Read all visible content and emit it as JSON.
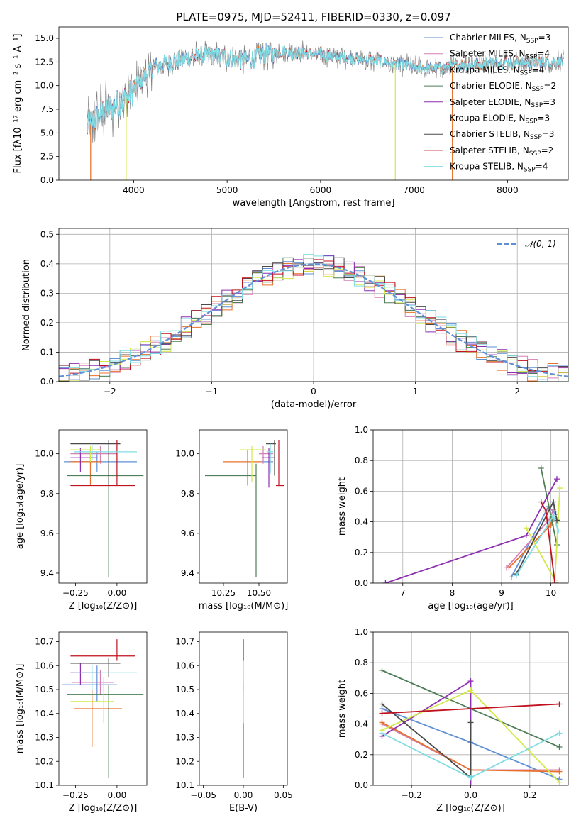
{
  "colors": {
    "Chabrier MILES": "#5f8fd6",
    "Salpeter MILES": "#d67fb5",
    "Kroupa MILES": "#e8702a",
    "Chabrier ELODIE": "#4e7d57",
    "Salpeter ELODIE": "#8e2eb0",
    "Kroupa ELODIE": "#d4e84a",
    "Chabrier STELIB": "#4a4a4a",
    "Salpeter STELIB": "#c0121e",
    "Kroupa STELIB": "#7fdde4"
  },
  "chart_data": [
    {
      "id": "spectrum",
      "type": "line",
      "title": "PLATE=0975, MJD=52411, FIBERID=0330, z=0.097",
      "xlabel": "wavelength [Angstrom, rest frame]",
      "ylabel": "Flux [fλ10⁻¹⁷ erg cm⁻² s⁻¹ A⁻¹]",
      "xlim": [
        3200,
        8650
      ],
      "ylim": [
        0,
        16.2
      ],
      "xticks": [
        4000,
        5000,
        6000,
        7000,
        8000
      ],
      "yticks": [
        0.0,
        2.5,
        5.0,
        7.5,
        10.0,
        12.5,
        15.0
      ],
      "grid": false,
      "legend_position": "top-right",
      "continuum": {
        "x": [
          3500,
          3600,
          3700,
          3800,
          3900,
          4000,
          4100,
          4200,
          4400,
          4600,
          4800,
          5000,
          5200,
          5400,
          5600,
          5800,
          6000,
          6200,
          6400,
          6600,
          6800,
          7000,
          7200,
          7400,
          7600,
          7800,
          8000,
          8200,
          8400,
          8600
        ],
        "y": [
          5.5,
          6.5,
          7.5,
          7.8,
          8.5,
          9.5,
          10.8,
          11.8,
          12.5,
          13.0,
          13.2,
          13.0,
          12.6,
          13.3,
          13.6,
          13.4,
          13.3,
          13.0,
          12.8,
          12.6,
          12.3,
          12.0,
          11.8,
          12.0,
          12.3,
          12.4,
          12.5,
          12.4,
          12.6,
          12.5
        ]
      },
      "series": [
        {
          "name": "Chabrier MILES, N_SSP=3",
          "legend": {
            "pre": "Chabrier MILES, N",
            "sub": "SSP",
            "post": "=3"
          }
        },
        {
          "name": "Salpeter MILES, N_SSP=4",
          "legend": {
            "pre": "Salpeter MILES, N",
            "sub": "SSP",
            "post": "=4"
          }
        },
        {
          "name": "Kroupa MILES, N_SSP=4",
          "legend": {
            "pre": "Kroupa MILES, N",
            "sub": "SSP",
            "post": "=4"
          }
        },
        {
          "name": "Chabrier ELODIE, N_SSP=2",
          "legend": {
            "pre": "Chabrier ELODIE, N",
            "sub": "SSP",
            "post": "=2"
          }
        },
        {
          "name": "Salpeter ELODIE, N_SSP=3",
          "legend": {
            "pre": "Salpeter ELODIE, N",
            "sub": "SSP",
            "post": "=3"
          }
        },
        {
          "name": "Kroupa ELODIE, N_SSP=3",
          "legend": {
            "pre": "Kroupa ELODIE, N",
            "sub": "SSP",
            "post": "=3"
          }
        },
        {
          "name": "Chabrier STELIB, N_SSP=3",
          "legend": {
            "pre": "Chabrier STELIB, N",
            "sub": "SSP",
            "post": "=3"
          }
        },
        {
          "name": "Salpeter STELIB, N_SSP=2",
          "legend": {
            "pre": "Salpeter STELIB, N",
            "sub": "SSP",
            "post": "=2"
          }
        },
        {
          "name": "Kroupa STELIB, N_SSP=4",
          "legend": {
            "pre": "Kroupa STELIB, N",
            "sub": "SSP",
            "post": "=4"
          }
        }
      ],
      "drop_lines": [
        {
          "x": 3540,
          "color": "Kroupa MILES"
        },
        {
          "x": 3920,
          "color": "Kroupa ELODIE"
        },
        {
          "x": 6800,
          "color": "Kroupa ELODIE"
        },
        {
          "x": 7410,
          "color": "Kroupa MILES"
        }
      ]
    },
    {
      "id": "residuals",
      "type": "step",
      "xlabel": "(data-model)/error",
      "ylabel": "Normed distribution",
      "xlim": [
        -2.5,
        2.5
      ],
      "ylim": [
        0,
        0.52
      ],
      "xticks": [
        -2,
        -1,
        0,
        1,
        2
      ],
      "yticks": [
        0.0,
        0.1,
        0.2,
        0.3,
        0.4,
        0.5
      ],
      "grid": true,
      "legend_position": "top-right",
      "gaussian_label": "𝒩(0, 1)",
      "bin_width": 0.1
    },
    {
      "id": "age-vs-Z",
      "type": "errorbar",
      "xlabel": "Z [log₁₀(Z/Z⊙)]",
      "ylabel": "age  [log₁₀(age/yr)]",
      "xlim": [
        -0.35,
        0.18
      ],
      "ylim": [
        9.35,
        10.12
      ],
      "xticks": [
        -0.25,
        0.0
      ],
      "yticks": [
        9.4,
        9.6,
        9.8,
        10.0
      ],
      "points": [
        {
          "c": "Chabrier MILES",
          "x": -0.12,
          "xlo": -0.32,
          "xhi": 0.12,
          "y": 9.96,
          "ylo": 9.91,
          "yhi": 10.01
        },
        {
          "c": "Salpeter MILES",
          "x": -0.1,
          "xlo": -0.28,
          "xhi": 0.0,
          "y": 10.0,
          "ylo": 9.95,
          "yhi": 10.04
        },
        {
          "c": "Kroupa MILES",
          "x": -0.16,
          "xlo": -0.28,
          "xhi": -0.09,
          "y": 9.96,
          "ylo": 9.84,
          "yhi": 10.02
        },
        {
          "c": "Chabrier ELODIE",
          "x": -0.05,
          "xlo": -0.3,
          "xhi": 0.16,
          "y": 9.89,
          "ylo": 9.38,
          "yhi": 9.95
        },
        {
          "c": "Salpeter ELODIE",
          "x": -0.22,
          "xlo": -0.28,
          "xhi": -0.12,
          "y": 9.98,
          "ylo": 9.91,
          "yhi": 10.03
        },
        {
          "c": "Kroupa ELODIE",
          "x": -0.16,
          "xlo": -0.28,
          "xhi": -0.1,
          "y": 10.02,
          "ylo": 9.96,
          "yhi": 10.04
        },
        {
          "c": "Chabrier STELIB",
          "x": -0.05,
          "xlo": -0.28,
          "xhi": 0.02,
          "y": 10.05,
          "ylo": 9.84,
          "yhi": 10.07
        },
        {
          "c": "Salpeter STELIB",
          "x": 0.0,
          "xlo": -0.28,
          "xhi": 0.11,
          "y": 9.84,
          "ylo": 9.84,
          "yhi": 10.07
        },
        {
          "c": "Kroupa STELIB",
          "x": -0.15,
          "xlo": -0.26,
          "xhi": 0.12,
          "y": 10.01,
          "ylo": 9.97,
          "yhi": 10.05
        }
      ]
    },
    {
      "id": "age-vs-mass",
      "type": "errorbar",
      "xlabel": "mass [log₁₀(M/M⊙)]",
      "ylabel": "",
      "xlim": [
        10.08,
        10.7
      ],
      "ylim": [
        9.35,
        10.12
      ],
      "xticks": [
        10.25,
        10.5
      ],
      "yticks": [
        9.4,
        9.6,
        9.8,
        10.0
      ],
      "points": [
        {
          "c": "Chabrier MILES",
          "x": 10.58,
          "xlo": 10.52,
          "xhi": 10.6,
          "y": 9.96,
          "ylo": 9.91,
          "yhi": 10.01
        },
        {
          "c": "Salpeter MILES",
          "x": 10.53,
          "xlo": 10.5,
          "xhi": 10.6,
          "y": 10.0,
          "ylo": 9.95,
          "yhi": 10.04
        },
        {
          "c": "Kroupa MILES",
          "x": 10.42,
          "xlo": 10.25,
          "xhi": 10.52,
          "y": 9.96,
          "ylo": 9.84,
          "yhi": 10.02
        },
        {
          "c": "Chabrier ELODIE",
          "x": 10.48,
          "xlo": 10.12,
          "xhi": 10.48,
          "y": 9.89,
          "ylo": 9.38,
          "yhi": 9.95
        },
        {
          "c": "Salpeter ELODIE",
          "x": 10.57,
          "xlo": 10.52,
          "xhi": 10.61,
          "y": 9.98,
          "ylo": 9.83,
          "yhi": 10.03
        },
        {
          "c": "Kroupa ELODIE",
          "x": 10.45,
          "xlo": 10.37,
          "xhi": 10.55,
          "y": 10.02,
          "ylo": 9.86,
          "yhi": 10.04
        },
        {
          "c": "Chabrier STELIB",
          "x": 10.61,
          "xlo": 10.55,
          "xhi": 10.62,
          "y": 10.05,
          "ylo": 9.89,
          "yhi": 10.07
        },
        {
          "c": "Salpeter STELIB",
          "x": 10.64,
          "xlo": 10.62,
          "xhi": 10.68,
          "y": 9.84,
          "ylo": 9.84,
          "yhi": 10.07
        },
        {
          "c": "Kroupa STELIB",
          "x": 10.58,
          "xlo": 10.56,
          "xhi": 10.6,
          "y": 10.01,
          "ylo": 9.9,
          "yhi": 10.05
        }
      ]
    },
    {
      "id": "weight-vs-age",
      "type": "line",
      "xlabel": "age  [log₁₀(age/yr)]",
      "ylabel": "mass weight",
      "xlim": [
        6.4,
        10.35
      ],
      "ylim": [
        0,
        1.0
      ],
      "xticks": [
        7,
        8,
        9,
        10
      ],
      "yticks": [
        0.0,
        0.2,
        0.4,
        0.6,
        0.8,
        1.0
      ],
      "grid": true,
      "series": [
        {
          "c": "Chabrier MILES",
          "x": [
            9.2,
            9.95,
            10.1
          ],
          "y": [
            0.04,
            0.5,
            0.45
          ]
        },
        {
          "c": "Salpeter MILES",
          "x": [
            9.1,
            9.98,
            10.05
          ],
          "y": [
            0.1,
            0.42,
            0.48
          ]
        },
        {
          "c": "Kroupa MILES",
          "x": [
            9.15,
            10.0,
            10.05
          ],
          "y": [
            0.1,
            0.38,
            0.42
          ]
        },
        {
          "c": "Chabrier ELODIE",
          "x": [
            9.8,
            10.12
          ],
          "y": [
            0.75,
            0.25
          ]
        },
        {
          "c": "Salpeter ELODIE",
          "x": [
            6.65,
            9.5,
            10.12
          ],
          "y": [
            0.0,
            0.31,
            0.68
          ]
        },
        {
          "c": "Kroupa ELODIE",
          "x": [
            9.5,
            10.08,
            10.18
          ],
          "y": [
            0.36,
            0.02,
            0.62
          ]
        },
        {
          "c": "Chabrier STELIB",
          "x": [
            9.3,
            10.05,
            10.12
          ],
          "y": [
            0.06,
            0.53,
            0.41
          ]
        },
        {
          "c": "Salpeter STELIB",
          "x": [
            9.8,
            9.9,
            10.08
          ],
          "y": [
            0.53,
            0.47,
            0.0
          ]
        },
        {
          "c": "Kroupa STELIB",
          "x": [
            9.3,
            10.05,
            10.15
          ],
          "y": [
            0.05,
            0.44,
            0.34
          ]
        }
      ]
    },
    {
      "id": "mass-vs-Z",
      "type": "errorbar",
      "xlabel": "Z [log₁₀(Z/Z⊙)]",
      "ylabel": "mass [log₁₀(M/M⊙)]",
      "xlim": [
        -0.35,
        0.18
      ],
      "ylim": [
        10.1,
        10.74
      ],
      "xticks": [
        -0.25,
        0.0
      ],
      "yticks": [
        10.1,
        10.2,
        10.3,
        10.4,
        10.5,
        10.6,
        10.7
      ],
      "points": [
        {
          "c": "Chabrier MILES",
          "x": -0.12,
          "xlo": -0.33,
          "xhi": 0.0,
          "y": 10.52,
          "ylo": 10.45,
          "yhi": 10.6
        },
        {
          "c": "Salpeter MILES",
          "x": -0.1,
          "xlo": -0.27,
          "xhi": -0.02,
          "y": 10.53,
          "ylo": 10.48,
          "yhi": 10.58
        },
        {
          "c": "Kroupa MILES",
          "x": -0.15,
          "xlo": -0.26,
          "xhi": 0.03,
          "y": 10.42,
          "ylo": 10.26,
          "yhi": 10.5
        },
        {
          "c": "Chabrier ELODIE",
          "x": -0.05,
          "xlo": -0.3,
          "xhi": 0.16,
          "y": 10.48,
          "ylo": 10.13,
          "yhi": 10.52
        },
        {
          "c": "Salpeter ELODIE",
          "x": -0.22,
          "xlo": -0.28,
          "xhi": -0.1,
          "y": 10.57,
          "ylo": 10.52,
          "yhi": 10.61
        },
        {
          "c": "Kroupa ELODIE",
          "x": -0.08,
          "xlo": -0.28,
          "xhi": -0.02,
          "y": 10.45,
          "ylo": 10.36,
          "yhi": 10.55
        },
        {
          "c": "Chabrier STELIB",
          "x": -0.05,
          "xlo": -0.28,
          "xhi": 0.02,
          "y": 10.61,
          "ylo": 10.55,
          "yhi": 10.63
        },
        {
          "c": "Salpeter STELIB",
          "x": 0.0,
          "xlo": -0.28,
          "xhi": 0.11,
          "y": 10.64,
          "ylo": 10.62,
          "yhi": 10.71
        },
        {
          "c": "Kroupa STELIB",
          "x": -0.15,
          "xlo": -0.26,
          "xhi": 0.12,
          "y": 10.57,
          "ylo": 10.5,
          "yhi": 10.6
        }
      ]
    },
    {
      "id": "mass-vs-ebv",
      "type": "errorbar",
      "xlabel": "E(B-V)",
      "ylabel": "",
      "xlim": [
        -0.055,
        0.055
      ],
      "ylim": [
        10.1,
        10.74
      ],
      "xticks": [
        -0.05,
        0.0,
        0.05
      ],
      "yticks": [
        10.1,
        10.2,
        10.3,
        10.4,
        10.5,
        10.6,
        10.7
      ],
      "points": [
        {
          "c": "Chabrier ELODIE",
          "x": 0.0,
          "xlo": 0.0,
          "xhi": 0.0,
          "y": 10.48,
          "ylo": 10.13,
          "yhi": 10.52
        },
        {
          "c": "Kroupa ELODIE",
          "x": 0.0,
          "xlo": 0.0,
          "xhi": 0.0,
          "y": 10.45,
          "ylo": 10.36,
          "yhi": 10.55
        },
        {
          "c": "Kroupa STELIB",
          "x": 0.0,
          "xlo": 0.0,
          "xhi": 0.0,
          "y": 10.57,
          "ylo": 10.5,
          "yhi": 10.63
        },
        {
          "c": "Salpeter STELIB",
          "x": 0.0,
          "xlo": 0.0,
          "xhi": 0.0,
          "y": 10.64,
          "ylo": 10.62,
          "yhi": 10.71
        }
      ]
    },
    {
      "id": "weight-vs-Z",
      "type": "line",
      "xlabel": "Z [log₁₀(Z/Z⊙)]",
      "ylabel": "mass weight",
      "xlim": [
        -0.33,
        0.33
      ],
      "ylim": [
        0,
        1.0
      ],
      "xticks": [
        -0.2,
        0.0,
        0.2
      ],
      "yticks": [
        0.0,
        0.2,
        0.4,
        0.6,
        0.8,
        1.0
      ],
      "grid": true,
      "series": [
        {
          "c": "Chabrier MILES",
          "x": [
            -0.3,
            0.0,
            0.0,
            0.3
          ],
          "y": [
            0.5,
            0.28,
            0.28,
            0.04
          ]
        },
        {
          "c": "Salpeter MILES",
          "x": [
            -0.3,
            0.0,
            0.3
          ],
          "y": [
            0.4,
            0.1,
            0.1
          ]
        },
        {
          "c": "Kroupa MILES",
          "x": [
            -0.3,
            0.0,
            0.0,
            0.3
          ],
          "y": [
            0.41,
            0.1,
            0.1,
            0.09
          ]
        },
        {
          "c": "Chabrier ELODIE",
          "x": [
            -0.3,
            0.3
          ],
          "y": [
            0.75,
            0.25
          ]
        },
        {
          "c": "Salpeter ELODIE",
          "x": [
            -0.3,
            0.0,
            0.0
          ],
          "y": [
            0.32,
            0.68,
            0.0
          ]
        },
        {
          "c": "Kroupa ELODIE",
          "x": [
            -0.3,
            0.0,
            0.3
          ],
          "y": [
            0.36,
            0.62,
            0.02
          ]
        },
        {
          "c": "Chabrier STELIB",
          "x": [
            -0.3,
            0.0,
            0.0
          ],
          "y": [
            0.53,
            0.05,
            0.41
          ]
        },
        {
          "c": "Salpeter STELIB",
          "x": [
            -0.3,
            0.3
          ],
          "y": [
            0.47,
            0.53
          ]
        },
        {
          "c": "Kroupa STELIB",
          "x": [
            -0.3,
            0.0,
            0.3
          ],
          "y": [
            0.34,
            0.05,
            0.34
          ]
        }
      ]
    }
  ]
}
